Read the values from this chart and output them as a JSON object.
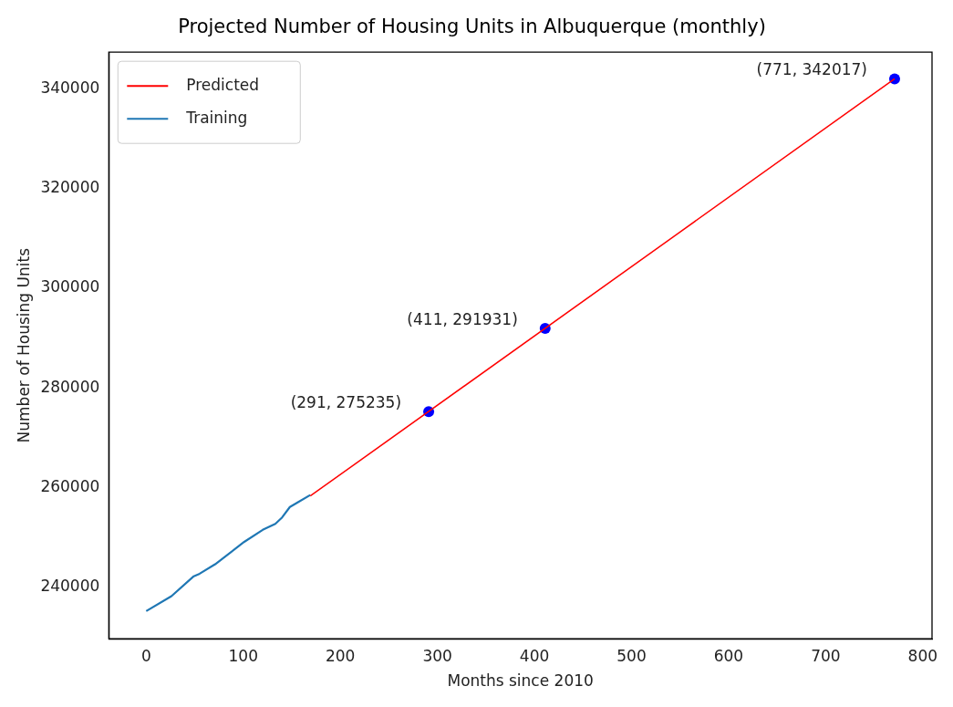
{
  "chart_data": {
    "type": "line",
    "title": "Projected Number of Housing Units in Albuquerque (monthly)",
    "xlabel": "Months since 2010",
    "ylabel": "Number of Housing Units",
    "series": [
      {
        "name": "Predicted",
        "color": "#ff0000",
        "x": [
          169,
          771
        ],
        "values": [
          258300,
          342017
        ]
      },
      {
        "name": "Training",
        "color": "#1f77b4",
        "x": [
          0,
          26,
          49,
          55,
          71,
          101,
          120,
          133,
          140,
          148,
          156,
          169
        ],
        "values": [
          235200,
          238200,
          242200,
          242700,
          244600,
          249100,
          251500,
          252700,
          254000,
          256100,
          257000,
          258500
        ]
      },
      {
        "type": "scatter",
        "color": "#0000ff",
        "marker": "circle",
        "x": [
          291,
          411,
          771
        ],
        "values": [
          275235,
          291931,
          342017
        ]
      }
    ],
    "annotations": [
      {
        "text": "(291, 275235)",
        "x": 291,
        "y": 275235
      },
      {
        "text": "(411, 291931)",
        "x": 411,
        "y": 291931
      },
      {
        "text": "(771, 342017)",
        "x": 771,
        "y": 342017
      }
    ],
    "xlim": [
      -38.55,
      809.55
    ],
    "xticks": [
      0,
      100,
      200,
      300,
      400,
      500,
      600,
      700,
      800
    ],
    "ylim": [
      229650,
      347370
    ],
    "yticks": [
      240000,
      260000,
      280000,
      300000,
      320000,
      340000
    ],
    "legend": "top left",
    "grid": false
  }
}
